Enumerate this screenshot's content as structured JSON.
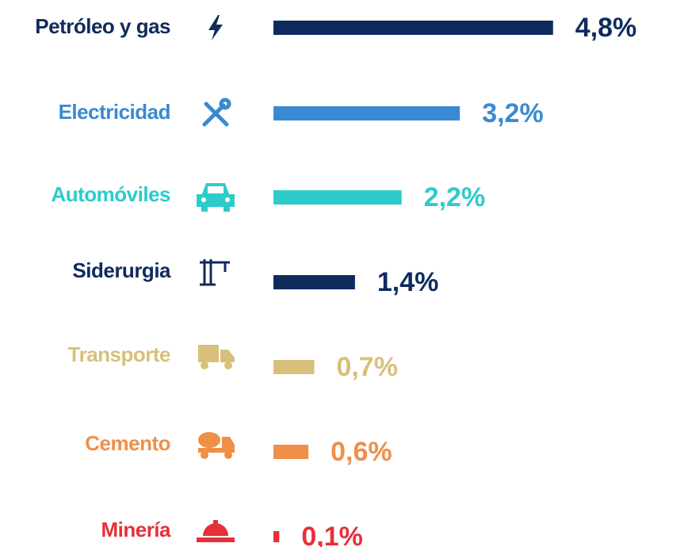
{
  "chart_data": {
    "type": "bar",
    "orientation": "horizontal",
    "categories": [
      "Petróleo y gas",
      "Electricidad",
      "Automóviles",
      "Siderurgia",
      "Transporte",
      "Cemento",
      "Minería"
    ],
    "values": [
      4.8,
      3.2,
      2.2,
      1.4,
      0.7,
      0.6,
      0.1
    ],
    "value_labels": [
      "4,8%",
      "3,2%",
      "2,2%",
      "1,4%",
      "0,7%",
      "0,6%",
      "0,1%"
    ],
    "colors": [
      "#0f2b5e",
      "#3a8ad2",
      "#2ecbcb",
      "#0f2b5e",
      "#d8c07a",
      "#ef8f48",
      "#e6303a"
    ]
  }
}
